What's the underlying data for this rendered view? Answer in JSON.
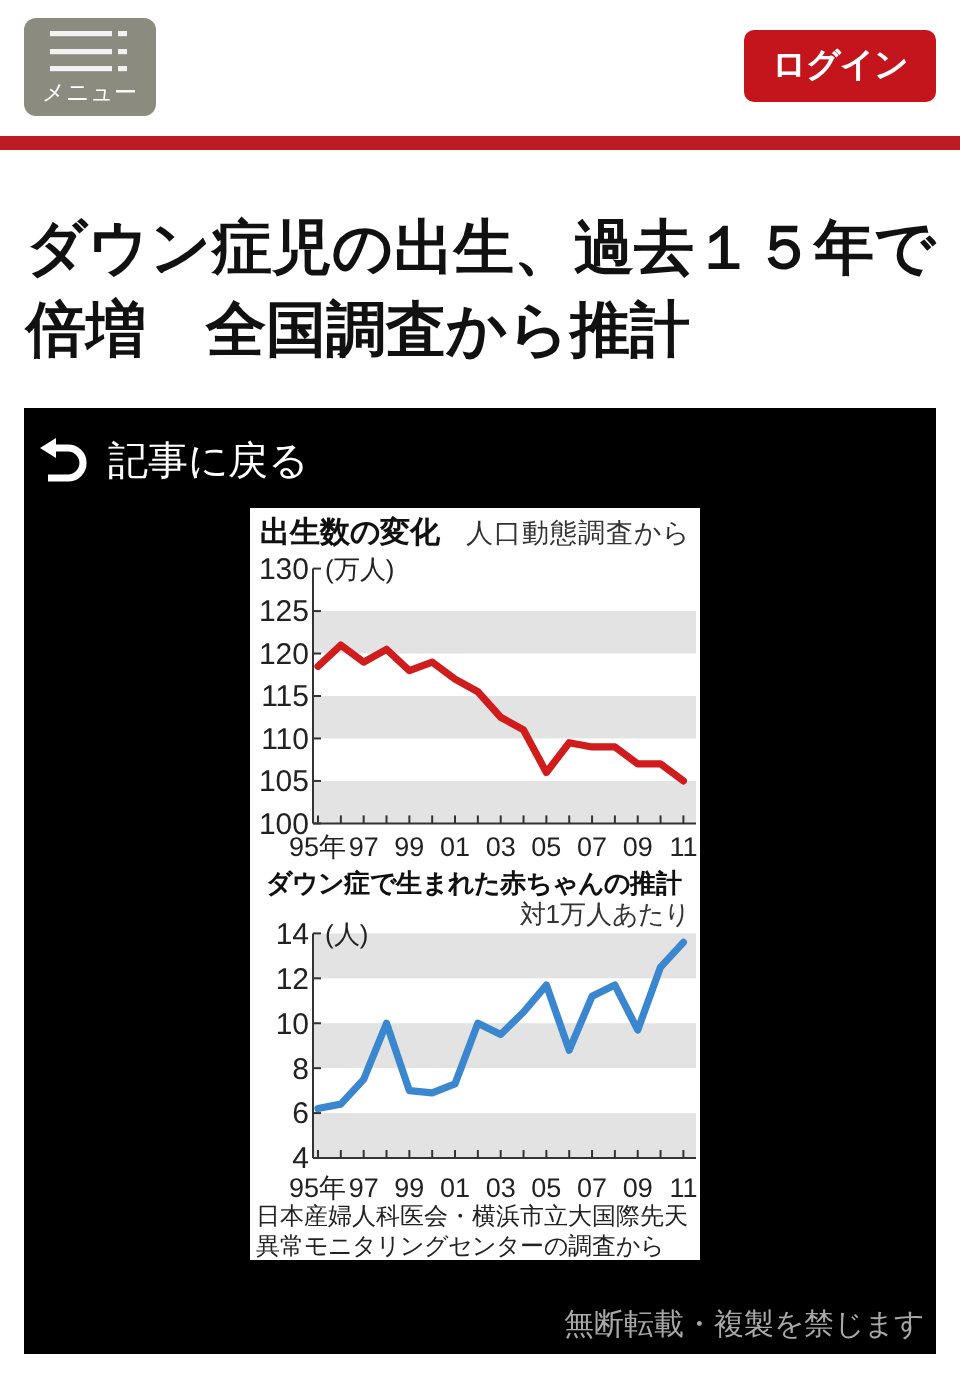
{
  "chart_data": [
    {
      "type": "other",
      "title": "ダウン症児の出生、過去１５年で倍増　全国調査から推計",
      "annotations": [
        "メニュー",
        "ログイン",
        "記事に戻る"
      ]
    },
    {
      "type": "line",
      "title": "出生数の変化",
      "subtitle": "人口動態調査から",
      "ylabel": "(万人)",
      "categories": [
        "95年",
        null,
        "97",
        null,
        "99",
        null,
        "01",
        null,
        "03",
        null,
        "05",
        null,
        "07",
        null,
        "09",
        null,
        "11"
      ],
      "series": [
        {
          "color": "#d01c1c",
          "values": [
            118.5,
            121,
            119,
            120.5,
            118,
            119,
            117,
            115.5,
            112.5,
            111,
            106,
            109.5,
            109,
            109,
            107,
            107,
            105
          ]
        }
      ],
      "ylim": [
        100,
        130
      ],
      "yticks": [
        100,
        105,
        110,
        115,
        120,
        125,
        130
      ],
      "bands": [
        {
          "axis": "y",
          "from": 100,
          "to": 105,
          "color": "#e3e3e3"
        },
        {
          "axis": "y",
          "from": 110,
          "to": 115,
          "color": "#e3e3e3"
        },
        {
          "axis": "y",
          "from": 120,
          "to": 125,
          "color": "#e3e3e3"
        }
      ]
    },
    {
      "type": "line",
      "title": "ダウン症で生まれた赤ちゃんの推計",
      "subtitle": "対1万人あたり",
      "ylabel": "(人)",
      "categories": [
        "95年",
        null,
        "97",
        null,
        "99",
        null,
        "01",
        null,
        "03",
        null,
        "05",
        null,
        "07",
        null,
        "09",
        null,
        "11"
      ],
      "series": [
        {
          "color": "#3b87cf",
          "values": [
            6.2,
            6.4,
            7.5,
            10,
            7,
            6.9,
            7.3,
            10,
            9.5,
            10.5,
            11.7,
            8.8,
            11.2,
            11.7,
            9.7,
            12.5,
            13.6
          ]
        }
      ],
      "ylim": [
        4,
        14
      ],
      "yticks": [
        4,
        6,
        8,
        10,
        12,
        14
      ],
      "bands": [
        {
          "axis": "y",
          "from": 4,
          "to": 6,
          "color": "#e3e3e3"
        },
        {
          "axis": "y",
          "from": 8,
          "to": 10,
          "color": "#e3e3e3"
        },
        {
          "axis": "y",
          "from": 12,
          "to": 14,
          "color": "#e3e3e3"
        }
      ],
      "annotations": [
        "日本産婦人科医会・横浜市立大国際先天異常モニタリングセンターの調査から"
      ]
    },
    {
      "type": "other",
      "annotations": [
        "無断転載・複製を禁じます"
      ]
    }
  ]
}
